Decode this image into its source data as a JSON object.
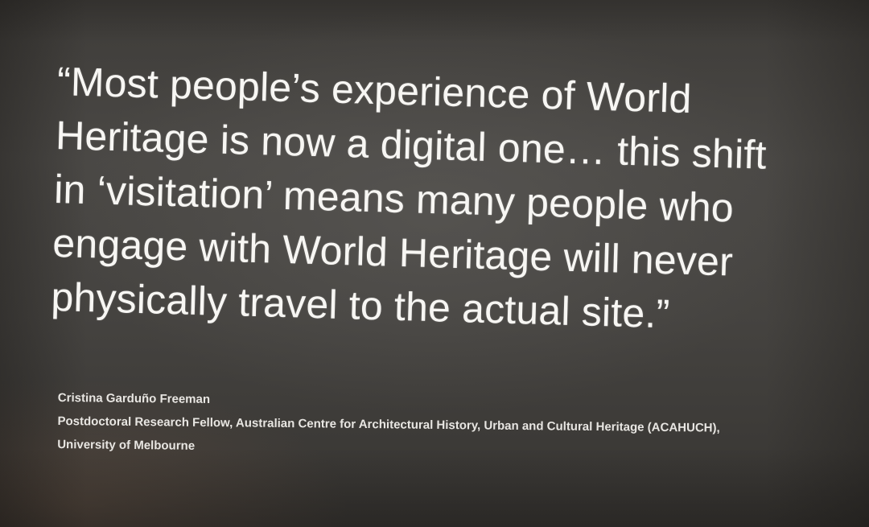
{
  "slide": {
    "quote_lines": [
      "“Most people’s experience of World",
      "Heritage is now a digital one… this shift",
      "in ‘visitation’ means many people who",
      "engage with World Heritage will never",
      "physically travel to the actual site.”"
    ],
    "author_name": "Cristina Garduño Freeman",
    "author_title": "Postdoctoral Research Fellow, Australian Centre for Architectural History, Urban and Cultural Heritage (ACAHUCH),",
    "author_affiliation": "University of Melbourne",
    "colors": {
      "background": "#454340",
      "text": "#f7f6f3"
    }
  }
}
